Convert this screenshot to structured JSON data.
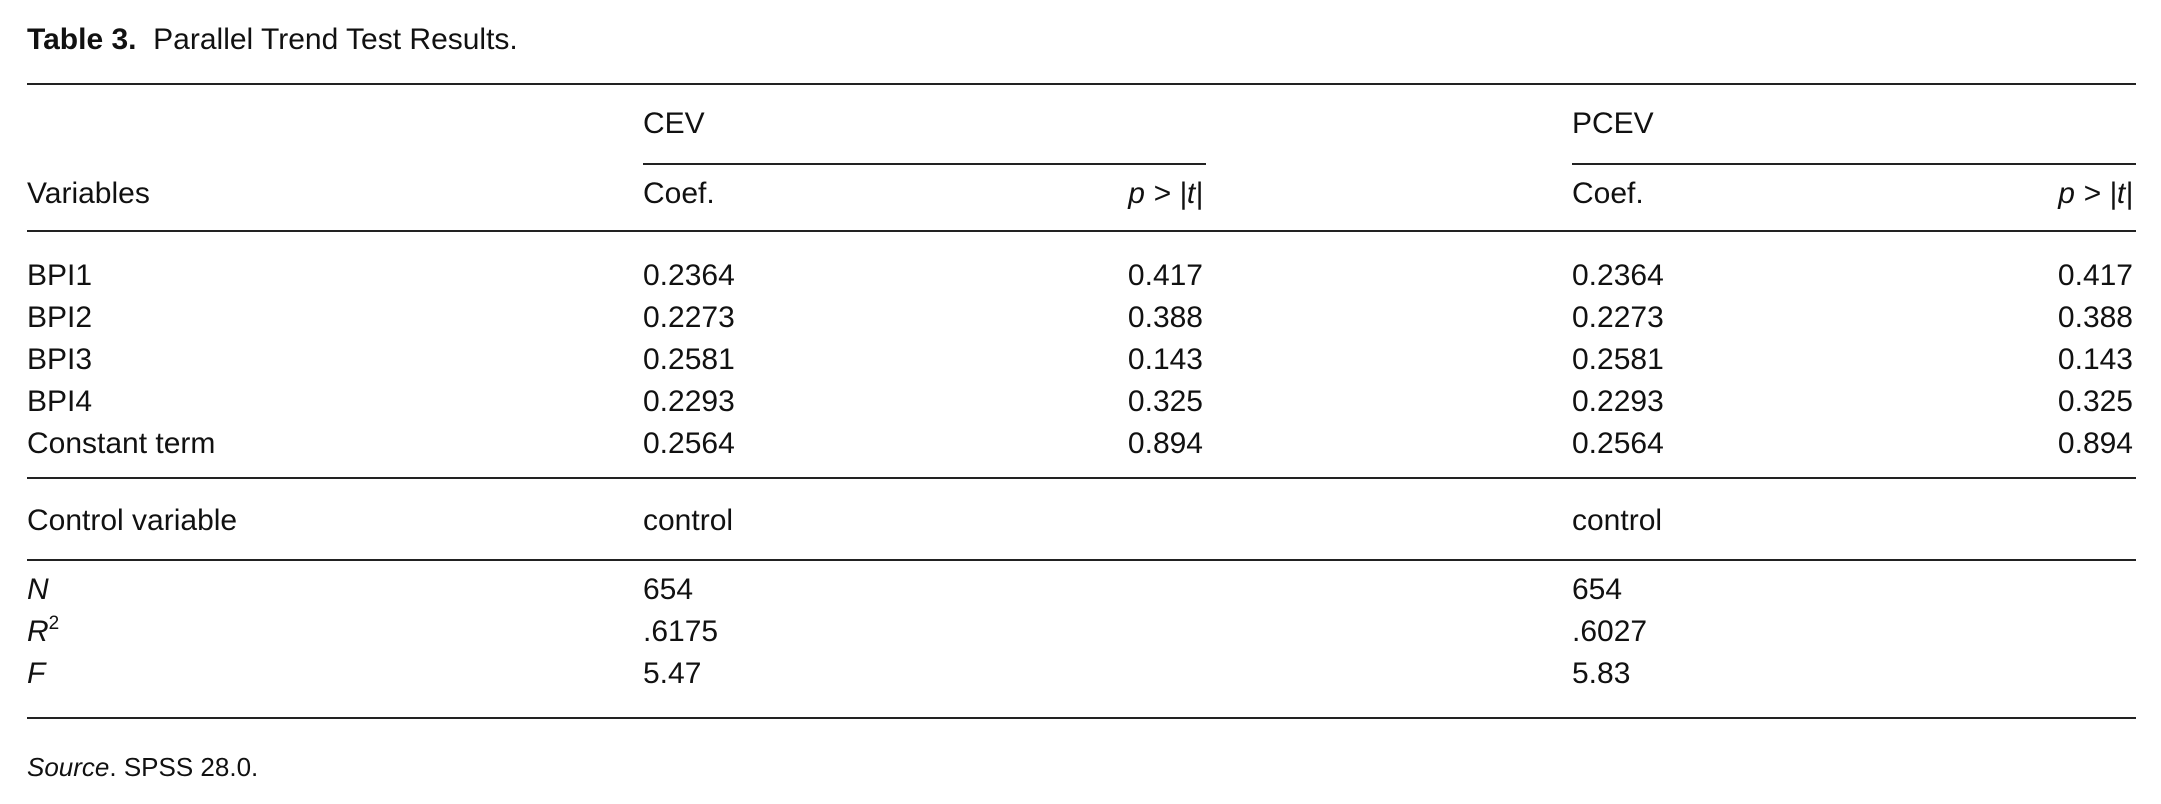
{
  "title": {
    "label": "Table 3.",
    "text": "Parallel Trend Test Results."
  },
  "table": {
    "group_headers": [
      "CEV",
      "PCEV"
    ],
    "row_header": "Variables",
    "sub_headers": [
      "Coef.",
      "p > |t|",
      "Coef.",
      "p > |t|"
    ],
    "rows": [
      [
        "BPI1",
        "0.2364",
        "0.417",
        "0.2364",
        "0.417"
      ],
      [
        "BPI2",
        "0.2273",
        "0.388",
        "0.2273",
        "0.388"
      ],
      [
        "BPI3",
        "0.2581",
        "0.143",
        "0.2581",
        "0.143"
      ],
      [
        "BPI4",
        "0.2293",
        "0.325",
        "0.2293",
        "0.325"
      ],
      [
        "Constant term",
        "0.2564",
        "0.894",
        "0.2564",
        "0.894"
      ]
    ],
    "control_row": [
      "Control variable",
      "control",
      "control"
    ],
    "stats": [
      {
        "label": "N",
        "values": [
          "654",
          "654"
        ]
      },
      {
        "label": "R",
        "sup": "2",
        "values": [
          ".6175",
          ".6027"
        ]
      },
      {
        "label": "F",
        "values": [
          "5.47",
          "5.83"
        ]
      }
    ]
  },
  "source": {
    "label": "Source",
    "text": "SPSS 28.0."
  }
}
